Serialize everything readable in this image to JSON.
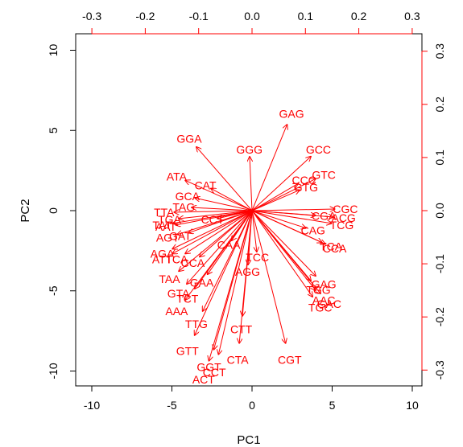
{
  "chart_data": {
    "type": "biplot",
    "xlabel": "PC1",
    "ylabel": "PC2",
    "xlim": [
      -10,
      10
    ],
    "ylim": [
      -10,
      10
    ],
    "x_ticks": [
      -10,
      -5,
      0,
      5,
      10
    ],
    "y_ticks": [
      -10,
      -5,
      0,
      5,
      10
    ],
    "secondary_xlim": [
      -0.3,
      0.3
    ],
    "secondary_ylim": [
      -0.3,
      0.3
    ],
    "secondary_x_ticks": [
      -0.3,
      -0.2,
      -0.1,
      0.0,
      0.1,
      0.2,
      0.3
    ],
    "secondary_y_ticks": [
      -0.3,
      -0.2,
      -0.1,
      0.0,
      0.1,
      0.2,
      0.3
    ],
    "grid": false,
    "colors": {
      "vectors": "#ff0000",
      "axes": "#000000",
      "secondary_axes": "#ff0000"
    },
    "vectors": [
      {
        "label": "GAG",
        "x": 2.2,
        "y": 5.4
      },
      {
        "label": "GGA",
        "x": -3.5,
        "y": 4.0
      },
      {
        "label": "GGG",
        "x": -0.15,
        "y": 3.4
      },
      {
        "label": "GCC",
        "x": 3.7,
        "y": 3.4
      },
      {
        "label": "GTC",
        "x": 4.0,
        "y": 2.0
      },
      {
        "label": "CCC",
        "x": 2.9,
        "y": 1.7
      },
      {
        "label": "GTG",
        "x": 3.0,
        "y": 1.3
      },
      {
        "label": "ATA",
        "x": -4.2,
        "y": 1.9
      },
      {
        "label": "CAT",
        "x": -2.6,
        "y": 1.4
      },
      {
        "label": "GCA",
        "x": -3.6,
        "y": 0.8
      },
      {
        "label": "TAG",
        "x": -3.8,
        "y": 0.2
      },
      {
        "label": "TTA",
        "x": -4.9,
        "y": -0.1
      },
      {
        "label": "TGA",
        "x": -4.6,
        "y": -0.5
      },
      {
        "label": "CCT",
        "x": -2.2,
        "y": -0.5
      },
      {
        "label": "TAT",
        "x": -5.0,
        "y": -0.8
      },
      {
        "label": "AAT",
        "x": -4.8,
        "y": -0.9
      },
      {
        "label": "AGT",
        "x": -4.7,
        "y": -1.5
      },
      {
        "label": "GAT",
        "x": -4.0,
        "y": -1.4
      },
      {
        "label": "CAA",
        "x": -1.3,
        "y": -1.9
      },
      {
        "label": "AGA",
        "x": -5.0,
        "y": -2.4
      },
      {
        "label": "ATT",
        "x": -5.0,
        "y": -2.7
      },
      {
        "label": "TCA",
        "x": -4.2,
        "y": -2.7
      },
      {
        "label": "CCA",
        "x": -3.3,
        "y": -2.9
      },
      {
        "label": "TCC",
        "x": 0.3,
        "y": -2.6
      },
      {
        "label": "AGG",
        "x": -0.25,
        "y": -3.4
      },
      {
        "label": "TAA",
        "x": -4.6,
        "y": -3.8
      },
      {
        "label": "GAA",
        "x": -2.8,
        "y": -4.0
      },
      {
        "label": "GTA",
        "x": -4.1,
        "y": -4.6
      },
      {
        "label": "TCT",
        "x": -3.6,
        "y": -4.9
      },
      {
        "label": "AAA",
        "x": -4.2,
        "y": -5.6
      },
      {
        "label": "TTG",
        "x": -3.1,
        "y": -6.3
      },
      {
        "label": "CTT",
        "x": -0.6,
        "y": -6.6
      },
      {
        "label": "GTT",
        "x": -3.6,
        "y": -7.8
      },
      {
        "label": "CTA",
        "x": -0.8,
        "y": -8.3
      },
      {
        "label": "GGT",
        "x": -2.4,
        "y": -8.7
      },
      {
        "label": "CCT",
        "x": -2.1,
        "y": -9.0
      },
      {
        "label": "ACT",
        "x": -2.7,
        "y": -9.4
      },
      {
        "label": "CGT",
        "x": 2.1,
        "y": -8.3
      },
      {
        "label": "CGC",
        "x": 5.2,
        "y": 0.1
      },
      {
        "label": "CGA",
        "x": 4.0,
        "y": -0.3
      },
      {
        "label": "ACG",
        "x": 5.1,
        "y": -0.4
      },
      {
        "label": "TCG",
        "x": 5.0,
        "y": -0.8
      },
      {
        "label": "CAG",
        "x": 3.4,
        "y": -1.1
      },
      {
        "label": "TCA",
        "x": 4.4,
        "y": -2.0
      },
      {
        "label": "CCA",
        "x": 4.6,
        "y": -2.1
      },
      {
        "label": "GAG",
        "x": 4.0,
        "y": -4.1
      },
      {
        "label": "TGG",
        "x": 3.7,
        "y": -4.4
      },
      {
        "label": "AAC",
        "x": 4.0,
        "y": -5.0
      },
      {
        "label": "GAC",
        "x": 4.3,
        "y": -5.2
      },
      {
        "label": "TGC",
        "x": 3.8,
        "y": -5.4
      }
    ]
  }
}
